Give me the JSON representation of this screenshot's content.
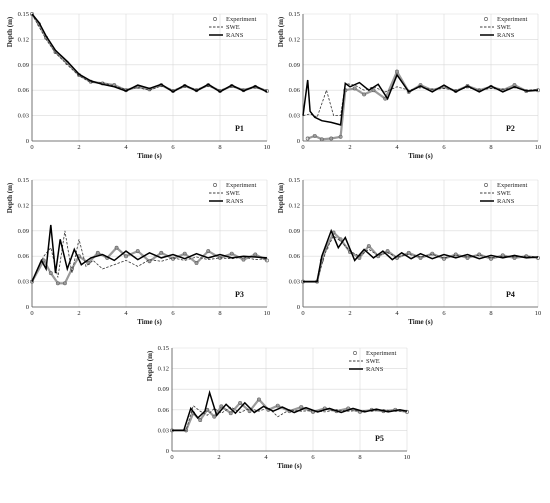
{
  "chart_data": [
    {
      "type": "line",
      "panel_label": "P1",
      "xlabel": "Time (s)",
      "ylabel": "Depth (m)",
      "xlim": [
        0,
        10
      ],
      "ylim": [
        0,
        0.15
      ],
      "xticks": [
        "0",
        "2",
        "4",
        "6",
        "8",
        "10"
      ],
      "yticks": [
        "0",
        "0.03",
        "0.06",
        "0.09",
        "0.12",
        "0.15"
      ],
      "grid": true,
      "legend_position": "top-right",
      "series": [
        {
          "name": "Experiment",
          "style": "circles",
          "x": [
            0,
            0.3,
            0.6,
            1,
            1.5,
            2,
            2.5,
            3,
            3.5,
            4,
            4.5,
            5,
            5.5,
            6,
            6.5,
            7,
            7.5,
            8,
            8.5,
            9,
            9.5,
            10
          ],
          "y": [
            0.15,
            0.138,
            0.122,
            0.105,
            0.092,
            0.078,
            0.07,
            0.068,
            0.066,
            0.06,
            0.064,
            0.061,
            0.066,
            0.059,
            0.065,
            0.06,
            0.066,
            0.059,
            0.065,
            0.06,
            0.064,
            0.059
          ]
        },
        {
          "name": "SWE",
          "style": "dashed",
          "x": [
            0,
            0.3,
            0.6,
            1,
            1.5,
            2,
            2.5,
            3,
            3.5,
            4,
            4.5,
            5,
            5.5,
            6,
            6.5,
            7,
            7.5,
            8,
            8.5,
            9,
            9.5,
            10
          ],
          "y": [
            0.15,
            0.135,
            0.12,
            0.104,
            0.09,
            0.077,
            0.069,
            0.069,
            0.065,
            0.061,
            0.063,
            0.06,
            0.065,
            0.06,
            0.064,
            0.061,
            0.065,
            0.06,
            0.064,
            0.061,
            0.063,
            0.06
          ]
        },
        {
          "name": "RANS",
          "style": "solid",
          "x": [
            0,
            0.3,
            0.6,
            1,
            1.5,
            2,
            2.5,
            3,
            3.5,
            4,
            4.5,
            5,
            5.5,
            6,
            6.5,
            7,
            7.5,
            8,
            8.5,
            9,
            9.5,
            10
          ],
          "y": [
            0.15,
            0.14,
            0.124,
            0.107,
            0.094,
            0.079,
            0.071,
            0.067,
            0.064,
            0.059,
            0.066,
            0.062,
            0.067,
            0.058,
            0.066,
            0.059,
            0.067,
            0.058,
            0.066,
            0.059,
            0.065,
            0.058
          ]
        }
      ]
    },
    {
      "type": "line",
      "panel_label": "P2",
      "xlabel": "Time (s)",
      "ylabel": "Depth (m)",
      "xlim": [
        0,
        10
      ],
      "ylim": [
        0,
        0.15
      ],
      "xticks": [
        "0",
        "2",
        "4",
        "6",
        "8",
        "10"
      ],
      "yticks": [
        "0",
        "0.03",
        "0.06",
        "0.09",
        "0.12",
        "0.15"
      ],
      "grid": true,
      "legend_position": "top-right",
      "series": [
        {
          "name": "Experiment",
          "style": "circles",
          "x": [
            0.2,
            0.5,
            0.8,
            1.2,
            1.6,
            1.8,
            2.2,
            2.6,
            3,
            3.5,
            4,
            4.5,
            5,
            5.5,
            6,
            6.5,
            7,
            7.5,
            8,
            8.5,
            9,
            9.5,
            10
          ],
          "y": [
            0.003,
            0.006,
            0.002,
            0.003,
            0.005,
            0.06,
            0.062,
            0.055,
            0.06,
            0.05,
            0.082,
            0.058,
            0.066,
            0.06,
            0.064,
            0.059,
            0.065,
            0.06,
            0.064,
            0.06,
            0.066,
            0.059,
            0.06
          ]
        },
        {
          "name": "SWE",
          "style": "dashed",
          "x": [
            0,
            0.3,
            0.6,
            1,
            1.3,
            1.6,
            1.8,
            2.2,
            2.6,
            3,
            3.5,
            4,
            4.5,
            5,
            5.5,
            6,
            6.5,
            7,
            7.5,
            8,
            8.5,
            9,
            9.5,
            10
          ],
          "y": [
            0.03,
            0.032,
            0.028,
            0.06,
            0.03,
            0.03,
            0.068,
            0.066,
            0.06,
            0.064,
            0.058,
            0.064,
            0.06,
            0.063,
            0.061,
            0.062,
            0.06,
            0.063,
            0.06,
            0.062,
            0.061,
            0.063,
            0.06,
            0.061
          ]
        },
        {
          "name": "RANS",
          "style": "solid",
          "x": [
            0,
            0.2,
            0.3,
            0.5,
            0.8,
            1.2,
            1.6,
            1.8,
            2,
            2.4,
            2.8,
            3.2,
            3.6,
            4,
            4.5,
            5,
            5.5,
            6,
            6.5,
            7,
            7.5,
            8,
            8.5,
            9,
            9.5,
            10
          ],
          "y": [
            0.03,
            0.072,
            0.035,
            0.028,
            0.024,
            0.022,
            0.019,
            0.068,
            0.064,
            0.069,
            0.06,
            0.067,
            0.05,
            0.078,
            0.058,
            0.065,
            0.058,
            0.066,
            0.058,
            0.065,
            0.058,
            0.065,
            0.058,
            0.064,
            0.059,
            0.06
          ]
        }
      ]
    },
    {
      "type": "line",
      "panel_label": "P3",
      "xlabel": "Time (s)",
      "ylabel": "Depth (m)",
      "xlim": [
        0,
        10
      ],
      "ylim": [
        0,
        0.15
      ],
      "xticks": [
        "0",
        "2",
        "4",
        "6",
        "8",
        "10"
      ],
      "yticks": [
        "0",
        "0.03",
        "0.06",
        "0.09",
        "0.12",
        "0.15"
      ],
      "grid": true,
      "legend_position": "top-right",
      "series": [
        {
          "name": "Experiment",
          "style": "circles",
          "x": [
            0,
            0.5,
            0.8,
            1.1,
            1.4,
            1.7,
            2,
            2.4,
            2.8,
            3.2,
            3.6,
            4,
            4.5,
            5,
            5.5,
            6,
            6.5,
            7,
            7.5,
            8,
            8.5,
            9,
            9.5,
            10
          ],
          "y": [
            0.03,
            0.055,
            0.04,
            0.028,
            0.028,
            0.045,
            0.06,
            0.052,
            0.064,
            0.058,
            0.07,
            0.06,
            0.066,
            0.054,
            0.064,
            0.057,
            0.063,
            0.052,
            0.066,
            0.058,
            0.063,
            0.056,
            0.062,
            0.055
          ]
        },
        {
          "name": "SWE",
          "style": "dashed",
          "x": [
            0,
            0.5,
            0.8,
            1.1,
            1.4,
            1.7,
            2,
            2.3,
            2.6,
            3,
            3.5,
            4,
            4.5,
            5,
            5.5,
            6,
            6.5,
            7,
            7.5,
            8,
            8.5,
            9,
            9.5,
            10
          ],
          "y": [
            0.03,
            0.06,
            0.07,
            0.035,
            0.09,
            0.04,
            0.08,
            0.048,
            0.055,
            0.045,
            0.05,
            0.055,
            0.048,
            0.056,
            0.054,
            0.058,
            0.055,
            0.059,
            0.056,
            0.058,
            0.057,
            0.059,
            0.056,
            0.057
          ]
        },
        {
          "name": "RANS",
          "style": "solid",
          "x": [
            0,
            0.4,
            0.6,
            0.8,
            1,
            1.2,
            1.5,
            1.8,
            2.1,
            2.5,
            3,
            3.5,
            4,
            4.5,
            5,
            5.5,
            6,
            6.5,
            7,
            7.5,
            8,
            8.5,
            9,
            9.5,
            10
          ],
          "y": [
            0.03,
            0.055,
            0.045,
            0.097,
            0.04,
            0.08,
            0.045,
            0.068,
            0.05,
            0.058,
            0.062,
            0.055,
            0.066,
            0.056,
            0.064,
            0.058,
            0.062,
            0.057,
            0.063,
            0.058,
            0.062,
            0.058,
            0.06,
            0.059,
            0.058
          ]
        }
      ]
    },
    {
      "type": "line",
      "panel_label": "P4",
      "xlabel": "Time (s)",
      "ylabel": "Depth (m)",
      "xlim": [
        0,
        10
      ],
      "ylim": [
        0,
        0.15
      ],
      "xticks": [
        "0",
        "2",
        "4",
        "6",
        "8",
        "10"
      ],
      "yticks": [
        "0",
        "0.03",
        "0.06",
        "0.09",
        "0.12",
        "0.15"
      ],
      "grid": true,
      "legend_position": "top-right",
      "series": [
        {
          "name": "Experiment",
          "style": "circles",
          "x": [
            0,
            0.6,
            0.8,
            1,
            1.3,
            1.6,
            2,
            2.4,
            2.8,
            3.2,
            3.6,
            4,
            4.5,
            5,
            5.5,
            6,
            6.5,
            7,
            7.5,
            8,
            8.5,
            9,
            9.5,
            10
          ],
          "y": [
            0.03,
            0.03,
            0.055,
            0.07,
            0.088,
            0.08,
            0.065,
            0.058,
            0.072,
            0.06,
            0.066,
            0.058,
            0.064,
            0.058,
            0.063,
            0.057,
            0.062,
            0.058,
            0.062,
            0.057,
            0.061,
            0.058,
            0.06,
            0.058
          ]
        },
        {
          "name": "SWE",
          "style": "dashed",
          "x": [
            0,
            0.6,
            0.8,
            1,
            1.3,
            1.6,
            2,
            2.4,
            2.8,
            3.2,
            3.6,
            4,
            4.5,
            5,
            5.5,
            6,
            6.5,
            7,
            7.5,
            8,
            8.5,
            9,
            9.5,
            10
          ],
          "y": [
            0.03,
            0.03,
            0.05,
            0.068,
            0.084,
            0.078,
            0.066,
            0.06,
            0.068,
            0.061,
            0.064,
            0.059,
            0.062,
            0.059,
            0.062,
            0.058,
            0.061,
            0.059,
            0.061,
            0.058,
            0.06,
            0.059,
            0.06,
            0.059
          ]
        },
        {
          "name": "RANS",
          "style": "solid",
          "x": [
            0,
            0.6,
            0.8,
            1,
            1.2,
            1.5,
            1.8,
            2.2,
            2.6,
            3,
            3.4,
            3.8,
            4.2,
            4.6,
            5,
            5.5,
            6,
            6.5,
            7,
            7.5,
            8,
            8.5,
            9,
            9.5,
            10
          ],
          "y": [
            0.03,
            0.03,
            0.06,
            0.075,
            0.09,
            0.07,
            0.082,
            0.055,
            0.068,
            0.058,
            0.066,
            0.056,
            0.064,
            0.057,
            0.063,
            0.057,
            0.062,
            0.058,
            0.062,
            0.057,
            0.061,
            0.058,
            0.061,
            0.058,
            0.059
          ]
        }
      ]
    },
    {
      "type": "line",
      "panel_label": "P5",
      "xlabel": "Time (s)",
      "ylabel": "Depth (m)",
      "xlim": [
        0,
        10
      ],
      "ylim": [
        0,
        0.15
      ],
      "xticks": [
        "0",
        "2",
        "4",
        "6",
        "8",
        "10"
      ],
      "yticks": [
        "0",
        "0.03",
        "0.06",
        "0.09",
        "0.12",
        "0.15"
      ],
      "grid": true,
      "legend_position": "top-right",
      "series": [
        {
          "name": "Experiment",
          "style": "circles",
          "x": [
            0,
            0.6,
            0.9,
            1.2,
            1.5,
            1.8,
            2.1,
            2.5,
            2.9,
            3.3,
            3.7,
            4.1,
            4.5,
            5,
            5.5,
            6,
            6.5,
            7,
            7.5,
            8,
            8.5,
            9,
            9.5,
            10
          ],
          "y": [
            0.03,
            0.03,
            0.055,
            0.045,
            0.06,
            0.05,
            0.065,
            0.055,
            0.07,
            0.058,
            0.075,
            0.06,
            0.066,
            0.058,
            0.064,
            0.057,
            0.062,
            0.058,
            0.062,
            0.057,
            0.06,
            0.058,
            0.06,
            0.057
          ]
        },
        {
          "name": "SWE",
          "style": "dashed",
          "x": [
            0,
            0.6,
            0.9,
            1.2,
            1.5,
            1.8,
            2.1,
            2.5,
            2.9,
            3.3,
            3.7,
            4.1,
            4.5,
            5,
            5.5,
            6,
            6.5,
            7,
            7.5,
            8,
            8.5,
            9,
            9.5,
            10
          ],
          "y": [
            0.03,
            0.03,
            0.066,
            0.058,
            0.052,
            0.062,
            0.055,
            0.064,
            0.056,
            0.062,
            0.058,
            0.063,
            0.05,
            0.06,
            0.058,
            0.059,
            0.057,
            0.06,
            0.058,
            0.059,
            0.058,
            0.06,
            0.058,
            0.058
          ]
        },
        {
          "name": "RANS",
          "style": "solid",
          "x": [
            0,
            0.5,
            0.8,
            1.1,
            1.4,
            1.6,
            1.9,
            2.3,
            2.7,
            3.1,
            3.5,
            3.9,
            4.3,
            4.7,
            5.2,
            5.7,
            6.2,
            6.7,
            7.2,
            7.7,
            8.2,
            8.7,
            9.2,
            9.7,
            10
          ],
          "y": [
            0.03,
            0.03,
            0.062,
            0.048,
            0.058,
            0.085,
            0.052,
            0.068,
            0.055,
            0.07,
            0.056,
            0.065,
            0.058,
            0.064,
            0.056,
            0.063,
            0.057,
            0.062,
            0.056,
            0.062,
            0.057,
            0.061,
            0.057,
            0.06,
            0.058
          ]
        }
      ]
    }
  ]
}
